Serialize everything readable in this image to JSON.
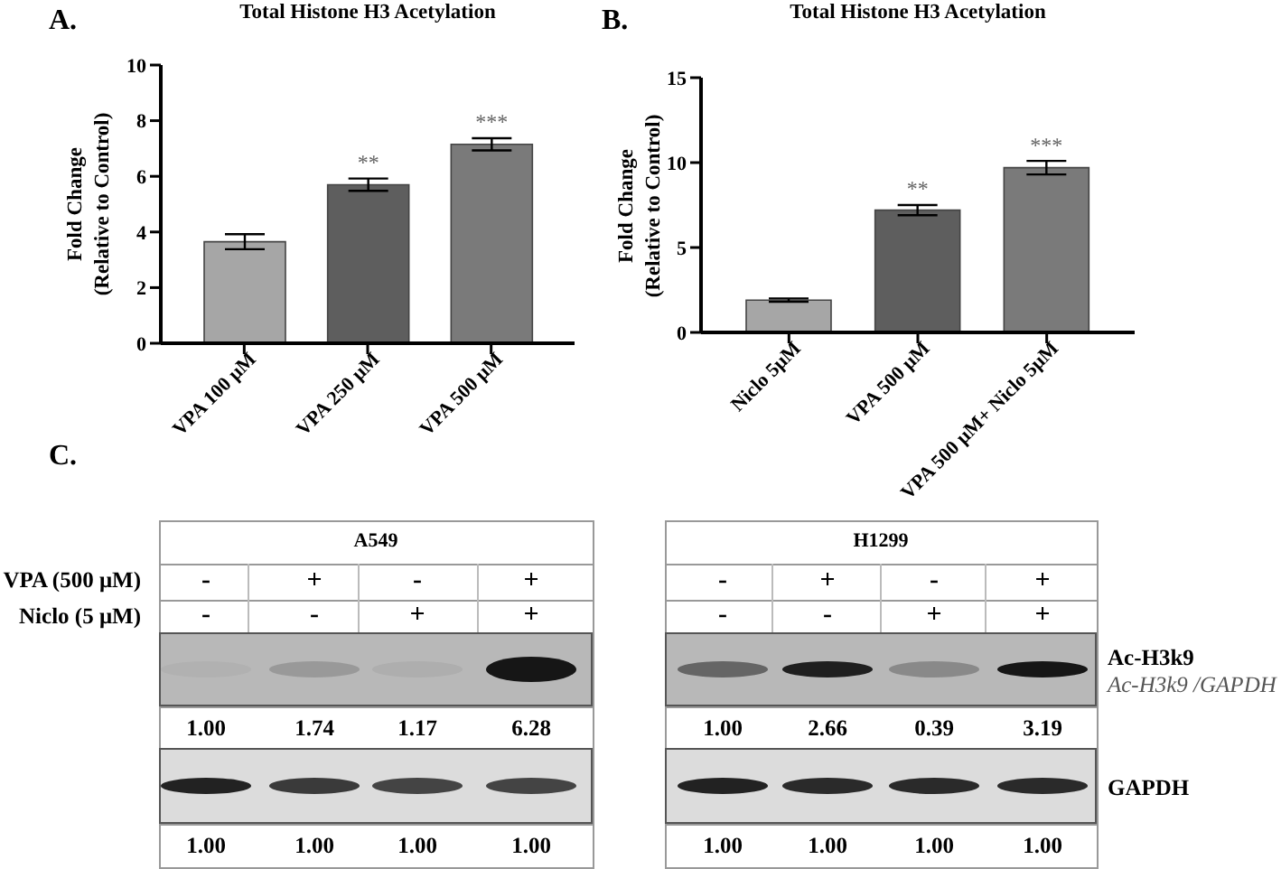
{
  "chart_data": [
    {
      "type": "bar",
      "title": "Total Histone H3 Acetylation",
      "ylabel": "Fold Change\n(Relative to Control)",
      "categories": [
        "VPA 100 μM",
        "VPA 250 μM",
        "VPA 500 μM"
      ],
      "values": [
        3.65,
        5.7,
        7.15
      ],
      "errors": [
        0.27,
        0.22,
        0.22
      ],
      "value_labels": [
        null,
        "**",
        "***"
      ],
      "colors": [
        "#a6a6a6",
        "#5e5e5e",
        "#7a7a7a"
      ],
      "ylim": [
        0,
        10
      ],
      "yticks": [
        0,
        2,
        4,
        6,
        8,
        10
      ],
      "annotations": [
        "A."
      ]
    },
    {
      "type": "bar",
      "title": "Total Histone H3 Acetylation",
      "ylabel": "Fold Change\n(Relative to Control)",
      "categories": [
        "Niclo 5μM",
        "VPA 500 μM",
        "VPA 500 μM+ Niclo 5μM"
      ],
      "values": [
        1.9,
        7.2,
        9.7
      ],
      "errors": [
        0.1,
        0.3,
        0.4
      ],
      "value_labels": [
        null,
        "**",
        "***"
      ],
      "colors": [
        "#a6a6a6",
        "#5e5e5e",
        "#7a7a7a"
      ],
      "ylim": [
        0,
        15
      ],
      "yticks": [
        0,
        5,
        10,
        15
      ],
      "annotations": [
        "B."
      ]
    },
    {
      "type": "other",
      "annotations": [
        "C.",
        "A549",
        "H1299",
        "VPA (500 μM)",
        "Niclo (5 μM)",
        "-",
        "+",
        "-",
        "+",
        "-",
        "+",
        "-",
        "+",
        "-",
        "-",
        "+",
        "+",
        "-",
        "-",
        "+",
        "+",
        "Ac-H3k9",
        "Ac-H3k9 /GAPDH",
        "GAPDH",
        "1.00",
        "1.74",
        "1.17",
        "6.28",
        "1.00",
        "2.66",
        "0.39",
        "3.19",
        "1.00",
        "1.00",
        "1.00",
        "1.00",
        "1.00",
        "1.00",
        "1.00",
        "1.00"
      ]
    }
  ]
}
